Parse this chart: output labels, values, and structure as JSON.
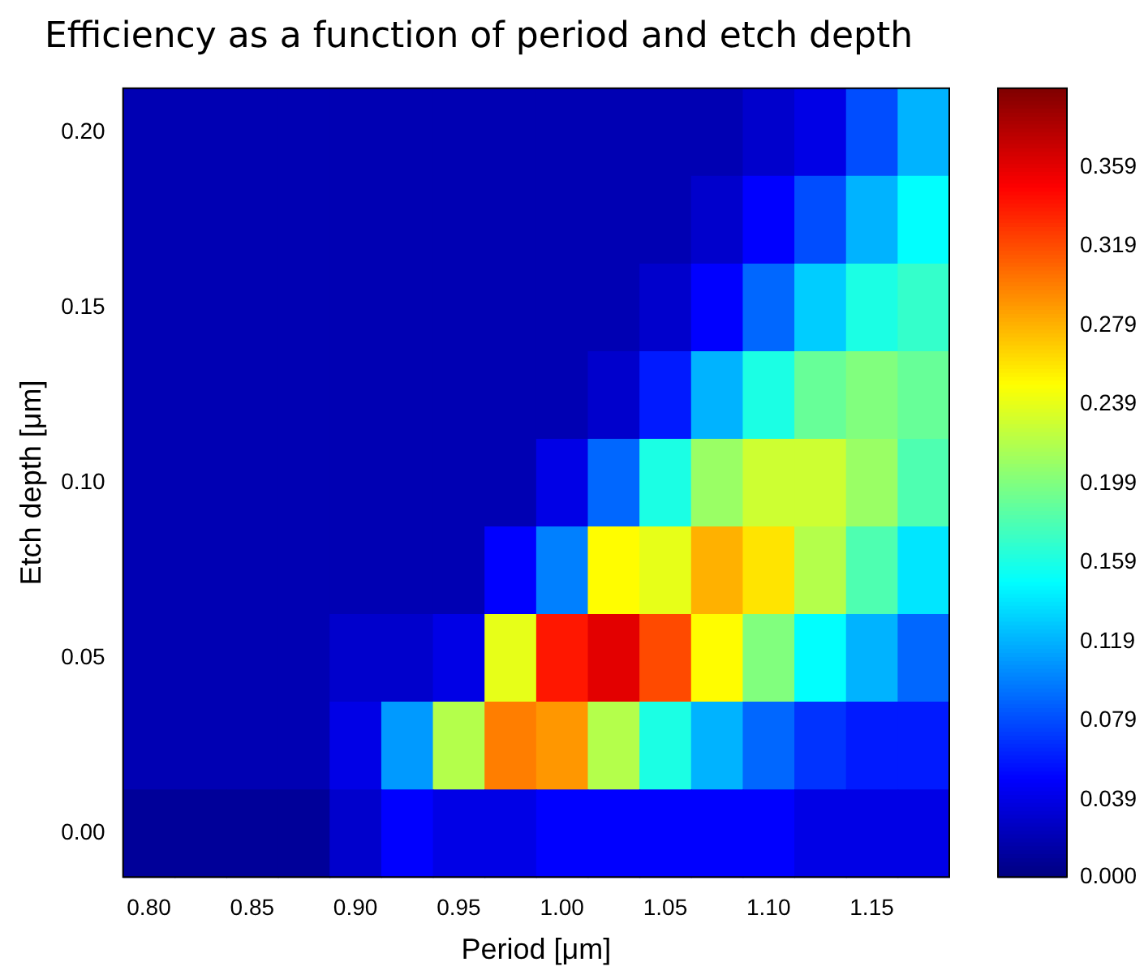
{
  "chart_data": {
    "type": "heatmap",
    "title": "Efficiency as a function of period and etch depth",
    "xlabel": "Period [μm]",
    "ylabel": "Etch depth [μm]",
    "categories": [
      "0.80",
      null,
      "0.85",
      null,
      "0.90",
      null,
      "0.95",
      null,
      "1.00",
      null,
      "1.05",
      null,
      "1.10",
      null,
      "1.15",
      null
    ],
    "y_categories": [
      "0.20",
      null,
      "0.15",
      null,
      "0.10",
      null,
      "0.05",
      null,
      "0.00"
    ],
    "cells": [
      [
        0.02,
        0.02,
        0.02,
        0.02,
        0.02,
        0.02,
        0.02,
        0.02,
        0.02,
        0.02,
        0.02,
        0.02,
        0.03,
        0.04,
        0.08,
        0.12
      ],
      [
        0.02,
        0.02,
        0.02,
        0.02,
        0.02,
        0.02,
        0.02,
        0.02,
        0.02,
        0.02,
        0.02,
        0.03,
        0.05,
        0.08,
        0.12,
        0.15
      ],
      [
        0.02,
        0.02,
        0.02,
        0.02,
        0.02,
        0.02,
        0.02,
        0.02,
        0.02,
        0.02,
        0.03,
        0.05,
        0.09,
        0.13,
        0.16,
        0.17
      ],
      [
        0.02,
        0.02,
        0.02,
        0.02,
        0.02,
        0.02,
        0.02,
        0.02,
        0.02,
        0.03,
        0.06,
        0.12,
        0.16,
        0.19,
        0.2,
        0.19
      ],
      [
        0.02,
        0.02,
        0.02,
        0.02,
        0.02,
        0.02,
        0.02,
        0.02,
        0.04,
        0.09,
        0.16,
        0.21,
        0.23,
        0.23,
        0.21,
        0.18
      ],
      [
        0.02,
        0.02,
        0.02,
        0.02,
        0.02,
        0.02,
        0.02,
        0.05,
        0.1,
        0.25,
        0.24,
        0.28,
        0.26,
        0.22,
        0.18,
        0.14
      ],
      [
        0.02,
        0.02,
        0.02,
        0.02,
        0.03,
        0.03,
        0.04,
        0.24,
        0.34,
        0.36,
        0.32,
        0.25,
        0.2,
        0.15,
        0.12,
        0.09
      ],
      [
        0.02,
        0.02,
        0.02,
        0.02,
        0.04,
        0.11,
        0.22,
        0.3,
        0.29,
        0.22,
        0.16,
        0.12,
        0.09,
        0.07,
        0.06,
        0.06
      ],
      [
        0.01,
        0.01,
        0.01,
        0.01,
        0.03,
        0.05,
        0.04,
        0.04,
        0.05,
        0.05,
        0.05,
        0.05,
        0.05,
        0.04,
        0.04,
        0.04
      ]
    ],
    "clim": [
      0,
      0.399
    ],
    "cticks": [
      {
        "value": 0,
        "label": "0.000"
      },
      0.039,
      0.079,
      0.119,
      0.159,
      0.199,
      0.239,
      0.279,
      0.319,
      0.359
    ]
  }
}
